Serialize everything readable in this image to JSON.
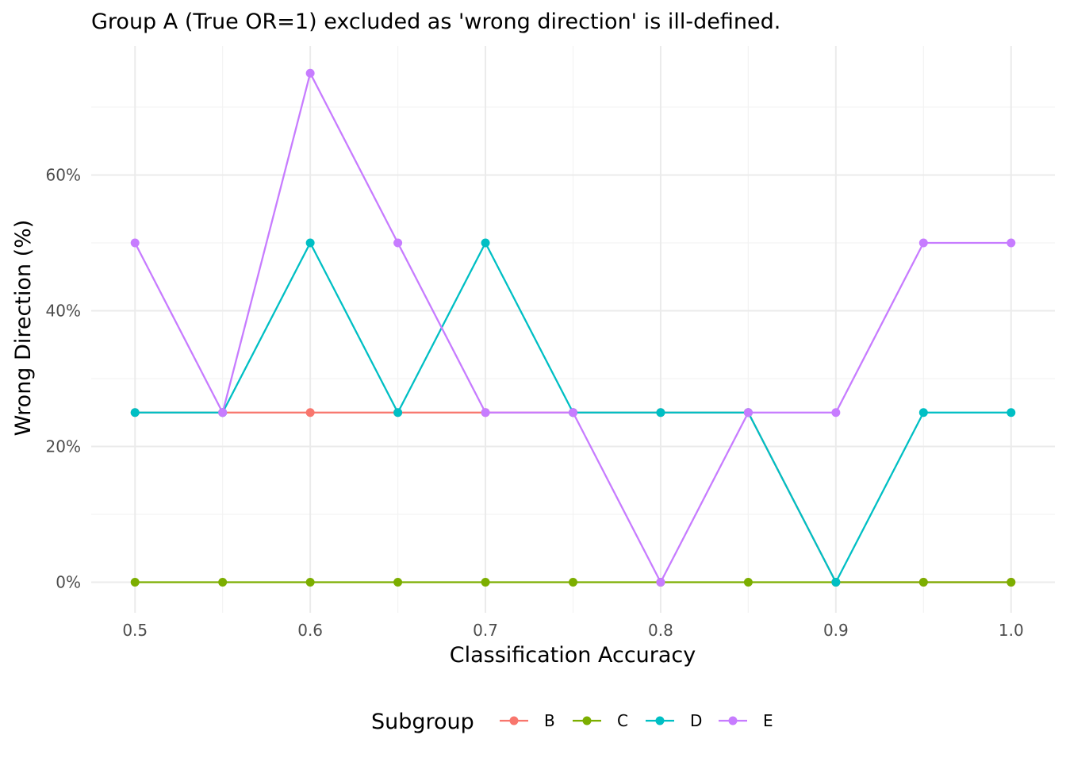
{
  "chart_data": {
    "type": "line",
    "title": "Group A (True OR=1) excluded as 'wrong direction' is ill-defined.",
    "xlabel": "Classification Accuracy",
    "ylabel": "Wrong Direction (%)",
    "x": [
      0.5,
      0.55,
      0.6,
      0.65,
      0.7,
      0.75,
      0.8,
      0.85,
      0.9,
      0.95,
      1.0
    ],
    "xlim": [
      0.475,
      1.025
    ],
    "ylim": [
      -4.5,
      79
    ],
    "x_ticks": [
      0.5,
      0.6,
      0.7,
      0.8,
      0.9,
      1.0
    ],
    "x_tick_labels": [
      "0.5",
      "0.6",
      "0.7",
      "0.8",
      "0.9",
      "1.0"
    ],
    "y_ticks": [
      0,
      20,
      40,
      60
    ],
    "y_tick_labels": [
      "0%",
      "20%",
      "40%",
      "60%"
    ],
    "grid": true,
    "legend": {
      "title": "Subgroup",
      "position": "bottom"
    },
    "series": [
      {
        "name": "B",
        "color": "#F8766D",
        "values": [
          25,
          25,
          25,
          25,
          25,
          25,
          25,
          25,
          0,
          0,
          0
        ]
      },
      {
        "name": "C",
        "color": "#7CAE00",
        "values": [
          0,
          0,
          0,
          0,
          0,
          0,
          0,
          0,
          0,
          0,
          0
        ]
      },
      {
        "name": "D",
        "color": "#00BFC4",
        "values": [
          25,
          25,
          50,
          25,
          50,
          25,
          25,
          25,
          0,
          25,
          25
        ]
      },
      {
        "name": "E",
        "color": "#C77CFF",
        "values": [
          50,
          25,
          75,
          50,
          25,
          25,
          0,
          25,
          25,
          50,
          50
        ]
      }
    ]
  }
}
